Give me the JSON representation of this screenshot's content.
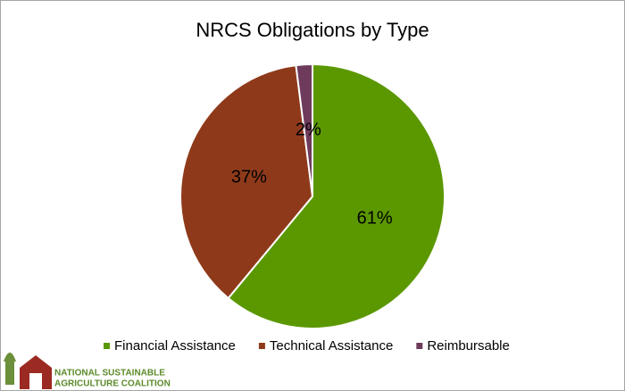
{
  "chart_data": {
    "type": "pie",
    "title": "NRCS Obligations by Type",
    "categories": [
      "Financial Assistance",
      "Technical Assistance",
      "Reimbursable"
    ],
    "values": [
      61,
      37,
      2
    ],
    "value_labels": [
      "61%",
      "37%",
      "2%"
    ],
    "colors": [
      "#5b9800",
      "#8e3a1a",
      "#6e3b5c"
    ],
    "legend": "bottom"
  },
  "logo": {
    "line1": "NATIONAL SUSTAINABLE",
    "line2": "AGRICULTURE COALITION"
  }
}
